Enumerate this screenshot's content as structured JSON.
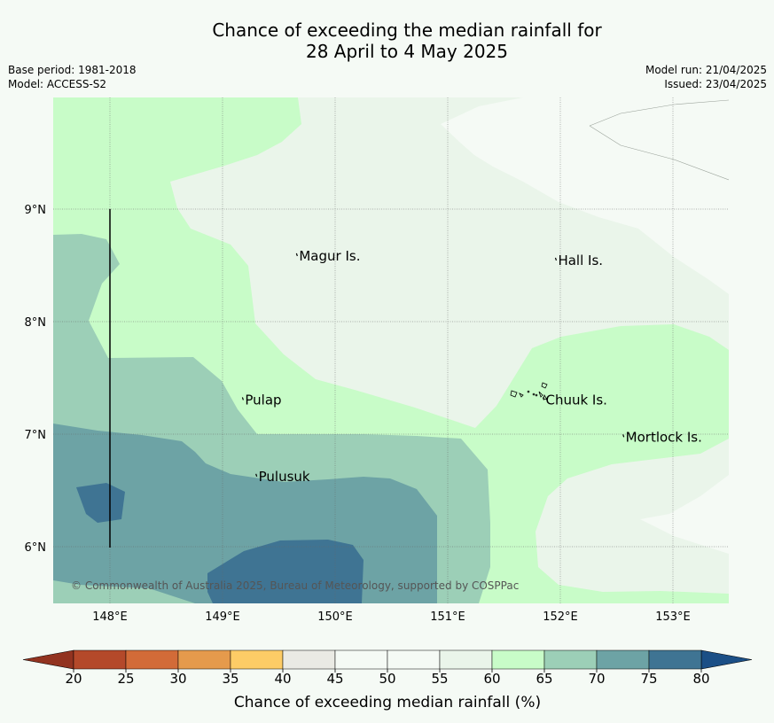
{
  "title": {
    "line1": "Chance of exceeding the median rainfall for",
    "line2": "28 April to 4 May 2025"
  },
  "meta": {
    "base_period": "Base period: 1981-2018",
    "model": "Model: ACCESS-S2",
    "model_run": "Model run: 21/04/2025",
    "issued": "Issued: 23/04/2025"
  },
  "map": {
    "lon_ticks": [
      "148°E",
      "149°E",
      "150°E",
      "151°E",
      "152°E",
      "153°E"
    ],
    "lat_ticks": [
      "9°N",
      "8°N",
      "7°N",
      "6°N"
    ],
    "places": [
      {
        "name": "Magur Is.",
        "lon": 149.68,
        "lat": 8.56
      },
      {
        "name": "Hall Is.",
        "lon": 151.98,
        "lat": 8.52
      },
      {
        "name": "Pulap",
        "lon": 149.2,
        "lat": 7.28
      },
      {
        "name": "Chuuk Is.",
        "lon": 151.87,
        "lat": 7.28
      },
      {
        "name": "Mortlock Is.",
        "lon": 152.58,
        "lat": 6.95
      },
      {
        "name": "Pulusuk",
        "lon": 149.32,
        "lat": 6.6
      }
    ],
    "copyright": "© Commonwealth of Australia 2025, Bureau of Meteorology, supported by COSPPac"
  },
  "colorbar": {
    "label": "Chance of exceeding median rainfall (%)",
    "ticks": [
      "20",
      "25",
      "30",
      "35",
      "40",
      "45",
      "50",
      "55",
      "60",
      "65",
      "70",
      "75",
      "80"
    ],
    "under_color": "#923320",
    "over_color": "#1b4f86",
    "colors": [
      "#b4492a",
      "#d26b38",
      "#e59a4c",
      "#fdcc66",
      "#eaeae4",
      "#f5faf5",
      "#f5faf5",
      "#eaf5ea",
      "#c8fcc8",
      "#9ccfb7",
      "#6da3a5",
      "#3f7493"
    ]
  }
}
